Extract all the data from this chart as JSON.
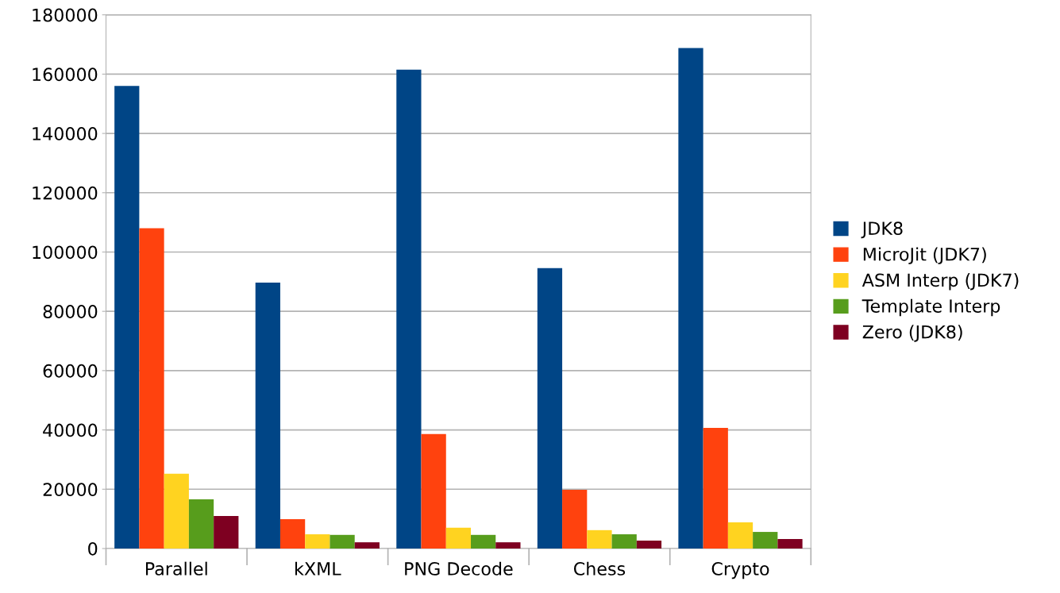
{
  "chart_data": {
    "type": "bar",
    "categories": [
      "Parallel",
      "kXML",
      "PNG Decode",
      "Chess",
      "Crypto"
    ],
    "series": [
      {
        "name": "JDK8",
        "color": "#004586",
        "values": [
          156000,
          89700,
          161500,
          94600,
          168800
        ]
      },
      {
        "name": "MicroJit (JDK7)",
        "color": "#ff420e",
        "values": [
          108000,
          9900,
          38600,
          19800,
          40700
        ]
      },
      {
        "name": "ASM Interp (JDK7)",
        "color": "#ffd320",
        "values": [
          25200,
          4800,
          7000,
          6200,
          8800
        ]
      },
      {
        "name": "Template Interp",
        "color": "#579d1c",
        "values": [
          16600,
          4600,
          4600,
          4800,
          5600
        ]
      },
      {
        "name": "Zero (JDK8)",
        "color": "#7e0021",
        "values": [
          11000,
          2100,
          2100,
          2700,
          3200
        ]
      }
    ],
    "ylim": [
      0,
      180000
    ],
    "yticks": [
      0,
      20000,
      40000,
      60000,
      80000,
      100000,
      120000,
      140000,
      160000,
      180000
    ],
    "grid": "y",
    "legend": "right"
  }
}
